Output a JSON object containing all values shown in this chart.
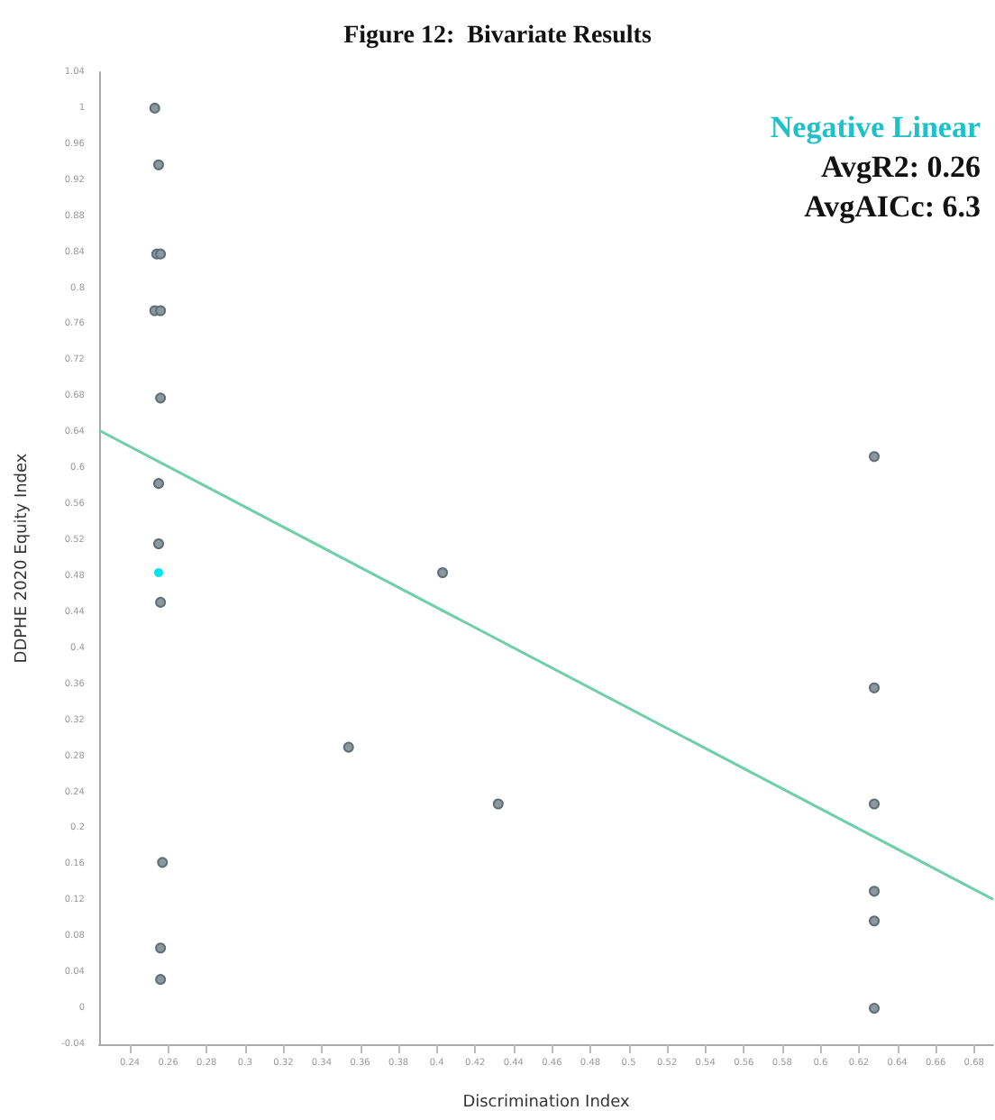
{
  "chart_data": {
    "type": "scatter",
    "title": "Figure 12:  Bivariate Results",
    "xlabel": "Discrimination Index",
    "ylabel": "DDPHE 2020 Equity Index",
    "annotations": [
      "Negative Linear",
      "AvgR2: 0.26",
      "AvgAICc: 6.3"
    ],
    "series": [
      {
        "color": "#8a9a9c",
        "x": [
          0.253,
          0.255,
          0.254,
          0.256,
          0.253,
          0.256,
          0.256,
          0.255,
          0.255,
          0.256,
          0.257,
          0.256,
          0.256,
          0.354,
          0.403,
          0.432,
          0.628,
          0.628,
          0.628,
          0.628,
          0.628,
          0.628
        ],
        "values": [
          1.0,
          0.937,
          0.838,
          0.838,
          0.775,
          0.775,
          0.678,
          0.583,
          0.516,
          0.451,
          0.162,
          0.067,
          0.032,
          0.29,
          0.484,
          0.227,
          0.613,
          0.356,
          0.227,
          0.13,
          0.097,
          0.0
        ]
      },
      {
        "color": "#00e5ee",
        "x": [
          0.255
        ],
        "values": [
          0.484
        ]
      },
      {
        "type": "line",
        "marker": "none",
        "color": "#6fcfa9",
        "x": [
          0.224,
          0.69
        ],
        "values": [
          0.642,
          0.121
        ]
      }
    ],
    "xlim": [
      0.224,
      0.69
    ],
    "xticks": [
      0.24,
      0.26,
      0.28,
      0.3,
      0.32,
      0.34,
      0.36,
      0.38,
      0.4,
      0.42,
      0.44,
      0.46,
      0.48,
      0.5,
      0.52,
      0.54,
      0.56,
      0.58,
      0.6,
      0.62,
      0.64,
      0.66,
      0.68
    ],
    "ylim": [
      -0.04,
      1.04
    ],
    "yticks": [
      -0.04,
      0,
      0.04,
      0.08,
      0.12,
      0.16,
      0.2,
      0.24,
      0.28,
      0.32,
      0.36,
      0.4,
      0.44,
      0.48,
      0.52,
      0.56,
      0.6,
      0.64,
      0.68,
      0.72,
      0.76,
      0.8,
      0.84,
      0.88,
      0.92,
      0.96,
      1,
      1.04
    ],
    "grid": false,
    "marker": "circle",
    "line_style": "solid"
  }
}
